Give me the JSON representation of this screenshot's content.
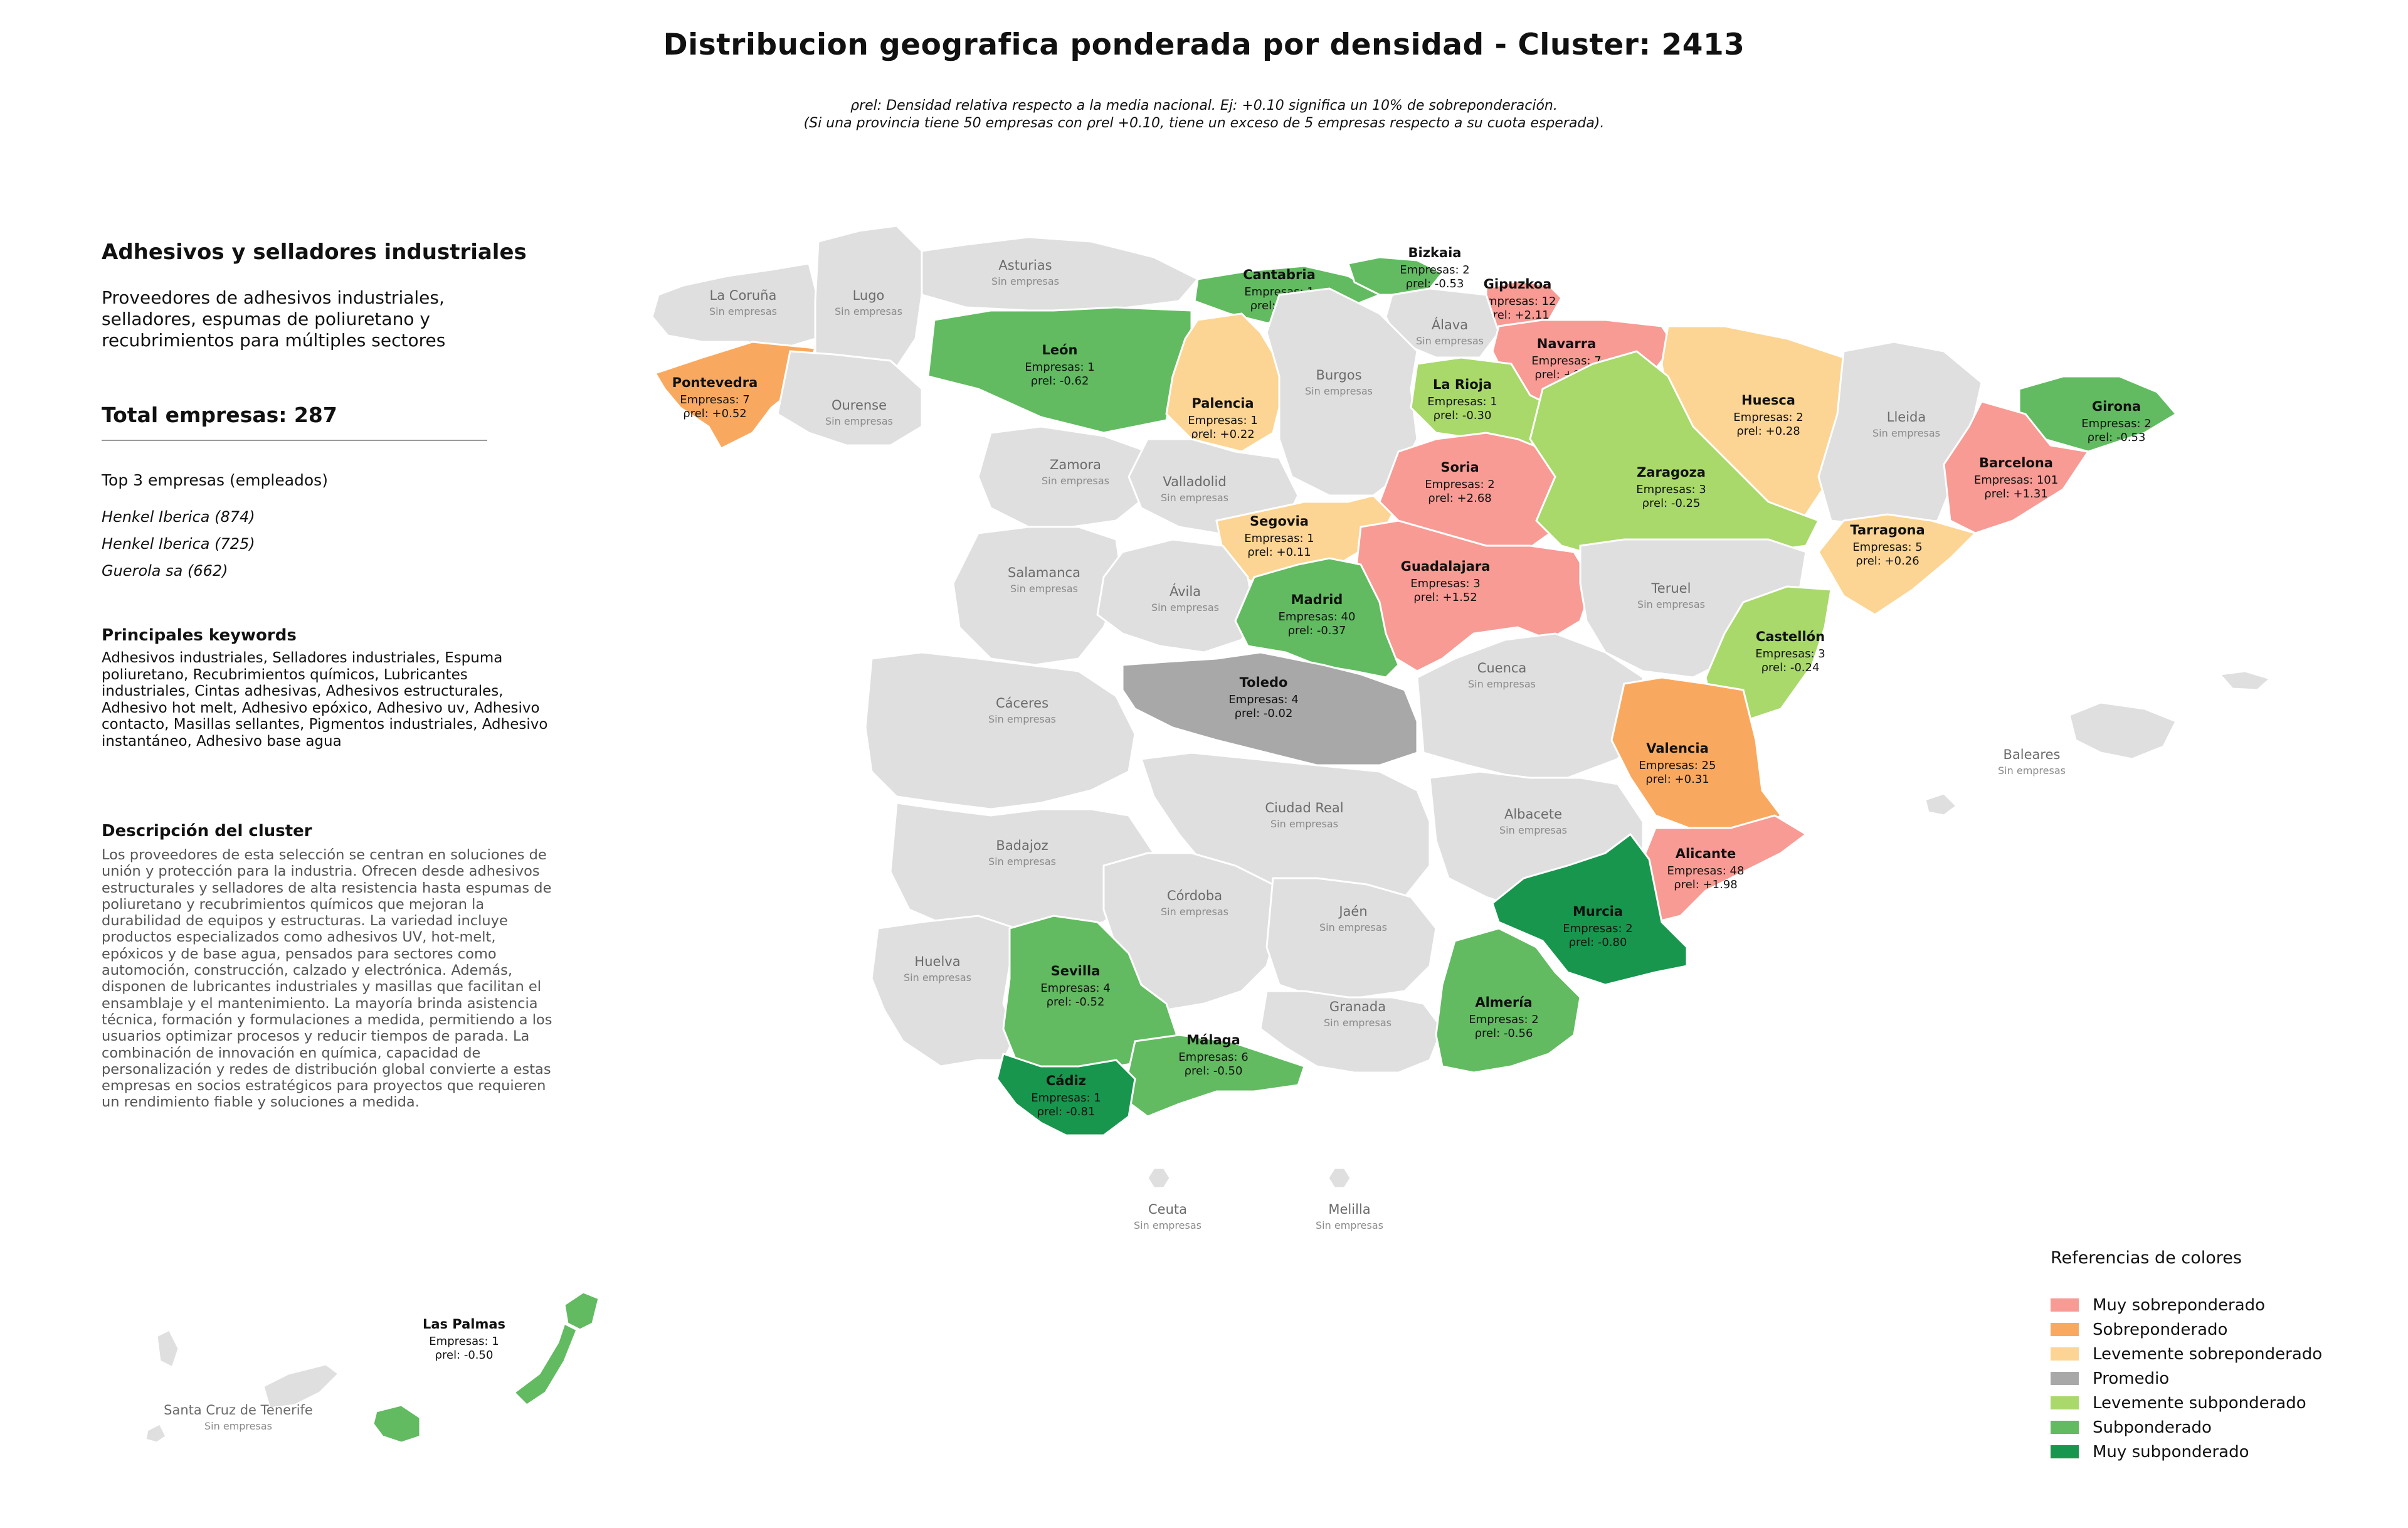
{
  "title": "Distribucion geografica ponderada por densidad - Cluster: 2413",
  "note_line1": "ρrel: Densidad relativa respecto a la media nacional. Ej: +0.10 significa un 10% de sobreponderación.",
  "note_line2": "(Si una provincia tiene 50 empresas con ρrel +0.10, tiene un exceso de 5 empresas respecto a su cuota esperada).",
  "panel": {
    "cluster_title": "Adhesivos y selladores industriales",
    "cluster_subtitle": "Proveedores de adhesivos industriales, selladores, espumas de poliuretano y recubrimientos para múltiples sectores",
    "total": "Total empresas: 287",
    "top3_heading": "Top 3 empresas (empleados)",
    "top3": [
      "Henkel Iberica (874)",
      "Henkel Iberica (725)",
      "Guerola sa (662)"
    ],
    "keywords_heading": "Principales keywords",
    "keywords": "Adhesivos industriales, Selladores industriales, Espuma poliuretano, Recubrimientos químicos, Lubricantes industriales, Cintas adhesivas, Adhesivos estructurales, Adhesivo hot melt, Adhesivo epóxico, Adhesivo uv, Adhesivo contacto, Masillas sellantes, Pigmentos industriales, Adhesivo instantáneo, Adhesivo base agua",
    "description_heading": "Descripción del cluster",
    "description": "Los proveedores de esta selección se centran en soluciones de unión y protección para la industria. Ofrecen desde adhesivos estructurales y selladores de alta resistencia hasta espumas de poliuretano y recubrimientos químicos que mejoran la durabilidad de equipos y estructuras. La variedad incluye productos especializados como adhesivos UV, hot-melt, epóxicos y de base agua, pensados para sectores como automoción, construcción, calzado y electrónica. Además, disponen de lubricantes industriales y masillas que facilitan el ensamblaje y el mantenimiento. La mayoría brinda asistencia técnica, formación y formulaciones a medida, permitiendo a los usuarios optimizar procesos y reducir tiempos de parada. La combinación de innovación en química, capacidad de personalización y redes de distribución global convierte a estas empresas en socios estratégicos para proyectos que requieren un rendimiento fiable y soluciones a medida."
  },
  "empty_label": "Sin empresas",
  "companies_prefix": "Empresas:",
  "rho_prefix": "ρrel:",
  "colors": {
    "muy_sobre": "#f79b94",
    "sobre": "#f9a95f",
    "lev_sobre": "#fcd594",
    "promedio": "#a8a8a8",
    "lev_sub": "#a8d96a",
    "sub": "#62bb61",
    "muy_sub": "#18964e",
    "empty": "#dfdfdf",
    "border": "#ffffff"
  },
  "legend": {
    "title": "Referencias de colores",
    "items": [
      {
        "label": "Muy sobreponderado",
        "cat": "muy_sobre"
      },
      {
        "label": "Sobreponderado",
        "cat": "sobre"
      },
      {
        "label": "Levemente sobreponderado",
        "cat": "lev_sobre"
      },
      {
        "label": "Promedio",
        "cat": "promedio"
      },
      {
        "label": "Levemente subponderado",
        "cat": "lev_sub"
      },
      {
        "label": "Subponderado",
        "cat": "sub"
      },
      {
        "label": "Muy subponderado",
        "cat": "muy_sub"
      }
    ]
  },
  "provinces": [
    {
      "name": "La Coruña",
      "companies": null
    },
    {
      "name": "Lugo",
      "companies": null
    },
    {
      "name": "Asturias",
      "companies": null
    },
    {
      "name": "Cantabria",
      "companies": 1,
      "rho": "-0.69",
      "cat": "sub"
    },
    {
      "name": "Bizkaia",
      "companies": 2,
      "rho": "-0.53",
      "cat": "sub"
    },
    {
      "name": "Gipuzkoa",
      "companies": 12,
      "rho": "+2.11",
      "cat": "muy_sobre"
    },
    {
      "name": "Álava",
      "companies": null
    },
    {
      "name": "Navarra",
      "companies": 7,
      "rho": "+0.94",
      "cat": "muy_sobre"
    },
    {
      "name": "Huesca",
      "companies": 2,
      "rho": "+0.28",
      "cat": "lev_sobre"
    },
    {
      "name": "Lleida",
      "companies": null
    },
    {
      "name": "Girona",
      "companies": 2,
      "rho": "-0.53",
      "cat": "sub"
    },
    {
      "name": "Barcelona",
      "companies": 101,
      "rho": "+1.31",
      "cat": "muy_sobre"
    },
    {
      "name": "Tarragona",
      "companies": 5,
      "rho": "+0.26",
      "cat": "lev_sobre"
    },
    {
      "name": "Pontevedra",
      "companies": 7,
      "rho": "+0.52",
      "cat": "sobre"
    },
    {
      "name": "Ourense",
      "companies": null
    },
    {
      "name": "León",
      "companies": 1,
      "rho": "-0.62",
      "cat": "sub"
    },
    {
      "name": "Palencia",
      "companies": 1,
      "rho": "+0.22",
      "cat": "lev_sobre"
    },
    {
      "name": "Burgos",
      "companies": null
    },
    {
      "name": "La Rioja",
      "companies": 1,
      "rho": "-0.30",
      "cat": "lev_sub"
    },
    {
      "name": "Soria",
      "companies": 2,
      "rho": "+2.68",
      "cat": "muy_sobre"
    },
    {
      "name": "Zaragoza",
      "companies": 3,
      "rho": "-0.25",
      "cat": "lev_sub"
    },
    {
      "name": "Zamora",
      "companies": null
    },
    {
      "name": "Valladolid",
      "companies": null
    },
    {
      "name": "Segovia",
      "companies": 1,
      "rho": "+0.11",
      "cat": "lev_sobre"
    },
    {
      "name": "Guadalajara",
      "companies": 3,
      "rho": "+1.52",
      "cat": "muy_sobre"
    },
    {
      "name": "Teruel",
      "companies": null
    },
    {
      "name": "Castellón",
      "companies": 3,
      "rho": "-0.24",
      "cat": "lev_sub"
    },
    {
      "name": "Salamanca",
      "companies": null
    },
    {
      "name": "Ávila",
      "companies": null
    },
    {
      "name": "Madrid",
      "companies": 40,
      "rho": "-0.37",
      "cat": "sub"
    },
    {
      "name": "Toledo",
      "companies": 4,
      "rho": "-0.02",
      "cat": "promedio"
    },
    {
      "name": "Cuenca",
      "companies": null
    },
    {
      "name": "Valencia",
      "companies": 25,
      "rho": "+0.31",
      "cat": "sobre"
    },
    {
      "name": "Cáceres",
      "companies": null
    },
    {
      "name": "Badajoz",
      "companies": null
    },
    {
      "name": "Ciudad Real",
      "companies": null
    },
    {
      "name": "Albacete",
      "companies": null
    },
    {
      "name": "Alicante",
      "companies": 48,
      "rho": "+1.98",
      "cat": "muy_sobre"
    },
    {
      "name": "Córdoba",
      "companies": null
    },
    {
      "name": "Jaén",
      "companies": null
    },
    {
      "name": "Murcia",
      "companies": 2,
      "rho": "-0.80",
      "cat": "muy_sub"
    },
    {
      "name": "Huelva",
      "companies": null
    },
    {
      "name": "Sevilla",
      "companies": 4,
      "rho": "-0.52",
      "cat": "sub"
    },
    {
      "name": "Granada",
      "companies": null
    },
    {
      "name": "Almería",
      "companies": 2,
      "rho": "-0.56",
      "cat": "sub"
    },
    {
      "name": "Málaga",
      "companies": 6,
      "rho": "-0.50",
      "cat": "sub"
    },
    {
      "name": "Cádiz",
      "companies": 1,
      "rho": "-0.81",
      "cat": "muy_sub"
    },
    {
      "name": "Baleares",
      "companies": null
    },
    {
      "name": "Ceuta",
      "companies": null
    },
    {
      "name": "Melilla",
      "companies": null
    },
    {
      "name": "Las Palmas",
      "companies": 1,
      "rho": "-0.50",
      "cat": "sub"
    },
    {
      "name": "Santa Cruz de Tenerife",
      "companies": null
    }
  ]
}
